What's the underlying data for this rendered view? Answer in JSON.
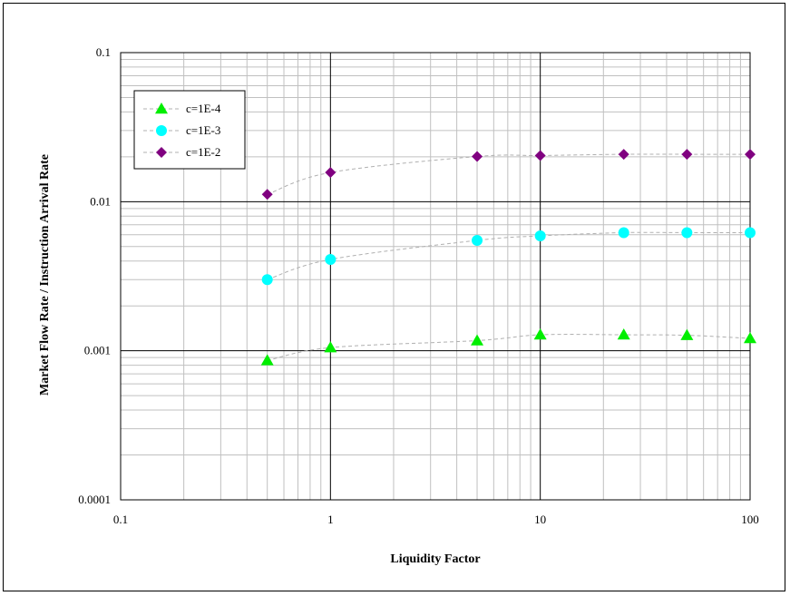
{
  "chart_data": {
    "type": "scatter",
    "title": "",
    "xlabel": "Liquidity Factor",
    "ylabel": "Market Flow Rate / Instruction Arrival Rate",
    "x_scale": "log",
    "y_scale": "log",
    "xlim": [
      0.1,
      100
    ],
    "ylim": [
      0.0001,
      0.1
    ],
    "x_ticks": [
      "0.1",
      "1",
      "10",
      "100"
    ],
    "y_ticks": [
      "0.0001",
      "0.001",
      "0.01",
      "0.1"
    ],
    "grid": true,
    "legend_position": "top-left",
    "series": [
      {
        "name": "c=1E-4",
        "marker": "triangle",
        "color": "#00ee00",
        "x": [
          0.5,
          1,
          5,
          10,
          25,
          50,
          100
        ],
        "y": [
          0.00086,
          0.00105,
          0.00117,
          0.00128,
          0.00128,
          0.00127,
          0.00121
        ]
      },
      {
        "name": "c=1E-3",
        "marker": "circle",
        "color": "#00ffff",
        "x": [
          0.5,
          1,
          5,
          10,
          25,
          50,
          100
        ],
        "y": [
          0.003,
          0.0041,
          0.0055,
          0.0059,
          0.0062,
          0.0062,
          0.0062
        ]
      },
      {
        "name": "c=1E-2",
        "marker": "diamond",
        "color": "#800080",
        "x": [
          0.5,
          1,
          5,
          10,
          25,
          50,
          100
        ],
        "y": [
          0.0112,
          0.0157,
          0.0201,
          0.0204,
          0.0208,
          0.0208,
          0.0208
        ]
      }
    ]
  }
}
